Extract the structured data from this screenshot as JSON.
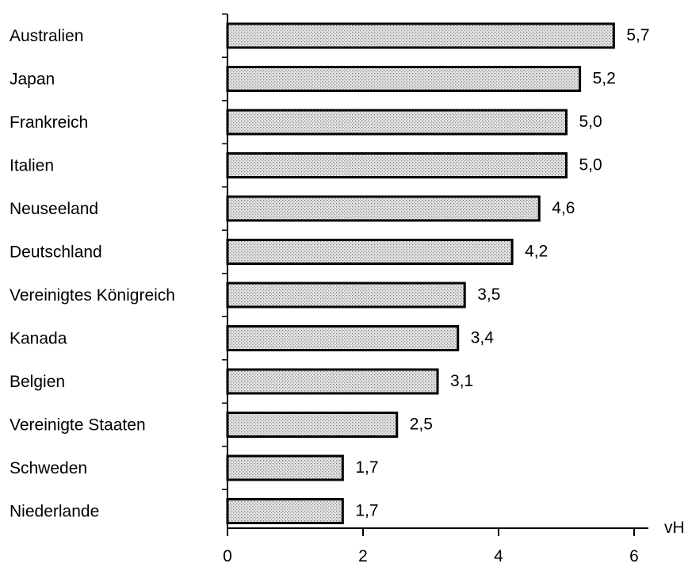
{
  "chart_data": {
    "type": "bar",
    "orientation": "horizontal",
    "categories": [
      "Australien",
      "Japan",
      "Frankreich",
      "Italien",
      "Neuseeland",
      "Deutschland",
      "Vereinigtes Königreich",
      "Kanada",
      "Belgien",
      "Vereinigte Staaten",
      "Schweden",
      "Niederlande"
    ],
    "values": [
      5.7,
      5.2,
      5.0,
      5.0,
      4.6,
      4.2,
      3.5,
      3.4,
      3.1,
      2.5,
      1.7,
      1.7
    ],
    "value_labels": [
      "5,7",
      "5,2",
      "5,0",
      "5,0",
      "4,6",
      "4,2",
      "3,5",
      "3,4",
      "3,1",
      "2,5",
      "1,7",
      "1,7"
    ],
    "title": "",
    "xlabel": "vH",
    "ylabel": "",
    "xlim": [
      0,
      6
    ],
    "x_ticks": [
      0,
      2,
      4,
      6
    ],
    "x_tick_labels": [
      "0",
      "2",
      "4",
      "6"
    ],
    "grid": false,
    "legend": "none",
    "bar_fill": "#d9d9d9",
    "bar_stroke": "#000000"
  }
}
